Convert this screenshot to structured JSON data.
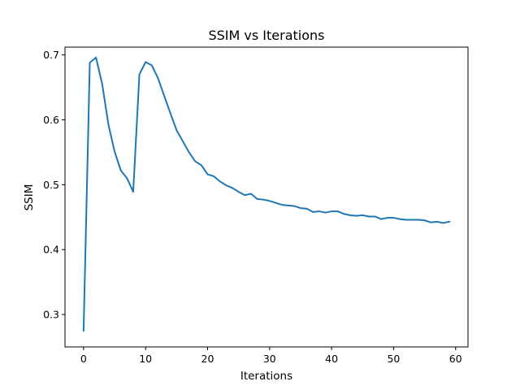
{
  "chart_data": {
    "type": "line",
    "title": "SSIM vs Iterations",
    "xlabel": "Iterations",
    "ylabel": "SSIM",
    "xlim": [
      -3,
      62
    ],
    "ylim": [
      0.25,
      0.712
    ],
    "xticks": [
      0,
      10,
      20,
      30,
      40,
      50,
      60
    ],
    "yticks": [
      0.3,
      0.4,
      0.5,
      0.6,
      0.7
    ],
    "grid": false,
    "series": [
      {
        "color": "#1f77b4",
        "x": [
          0,
          1,
          2,
          3,
          4,
          5,
          6,
          7,
          8,
          9,
          10,
          11,
          12,
          13,
          14,
          15,
          16,
          17,
          18,
          19,
          20,
          21,
          22,
          23,
          24,
          25,
          26,
          27,
          28,
          29,
          30,
          31,
          32,
          33,
          34,
          35,
          36,
          37,
          38,
          39,
          40,
          41,
          42,
          43,
          44,
          45,
          46,
          47,
          48,
          49,
          50,
          51,
          52,
          53,
          54,
          55,
          56,
          57,
          58,
          59
        ],
        "values": [
          0.275,
          0.688,
          0.696,
          0.655,
          0.593,
          0.551,
          0.522,
          0.51,
          0.489,
          0.67,
          0.689,
          0.684,
          0.664,
          0.637,
          0.61,
          0.584,
          0.567,
          0.55,
          0.536,
          0.53,
          0.516,
          0.513,
          0.505,
          0.499,
          0.495,
          0.489,
          0.484,
          0.486,
          0.478,
          0.477,
          0.475,
          0.472,
          0.469,
          0.468,
          0.467,
          0.464,
          0.463,
          0.458,
          0.459,
          0.457,
          0.459,
          0.459,
          0.455,
          0.453,
          0.452,
          0.453,
          0.451,
          0.451,
          0.447,
          0.449,
          0.449,
          0.447,
          0.446,
          0.446,
          0.446,
          0.445,
          0.442,
          0.443,
          0.441,
          0.443
        ]
      }
    ]
  }
}
